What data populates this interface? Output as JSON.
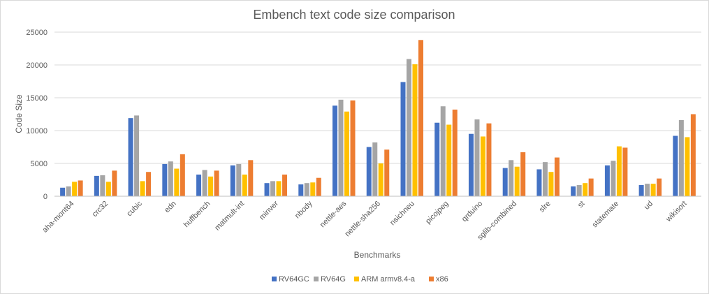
{
  "chart_data": {
    "type": "bar",
    "title": "Embench text code size comparison",
    "xlabel": "Benchmarks",
    "ylabel": "Code Size",
    "ylim": [
      0,
      25000
    ],
    "yticks": [
      0,
      5000,
      10000,
      15000,
      20000,
      25000
    ],
    "grid": true,
    "legend_position": "bottom",
    "categories": [
      "aha-mont64",
      "crc32",
      "cubic",
      "edn",
      "huffbench",
      "matmult-int",
      "minver",
      "nbody",
      "nettle-aes",
      "nettle-sha256",
      "nsichneu",
      "picojpeg",
      "qrduino",
      "sglib-combined",
      "slre",
      "st",
      "statemate",
      "ud",
      "wikisort"
    ],
    "series": [
      {
        "name": "RV64GC",
        "color": "#4472c4",
        "values": [
          1300,
          3100,
          11900,
          4900,
          3300,
          4700,
          2000,
          1800,
          13800,
          7500,
          17400,
          11200,
          9500,
          4300,
          4100,
          1500,
          4700,
          1700,
          9200
        ]
      },
      {
        "name": "RV64G",
        "color": "#a5a5a5",
        "values": [
          1500,
          3200,
          12300,
          5300,
          4000,
          4900,
          2300,
          2000,
          14700,
          8200,
          20900,
          13700,
          11700,
          5500,
          5200,
          1700,
          5400,
          1900,
          11600
        ]
      },
      {
        "name": "ARM armv8.4-a",
        "color": "#ffc000",
        "values": [
          2200,
          2200,
          2300,
          4200,
          3000,
          3300,
          2300,
          2100,
          12900,
          5000,
          20100,
          10900,
          9100,
          4500,
          3700,
          2000,
          7600,
          1900,
          9000
        ]
      },
      {
        "name": "x86",
        "color": "#ed7d31",
        "values": [
          2400,
          3900,
          3700,
          6400,
          3900,
          5500,
          3300,
          2800,
          14600,
          7100,
          23800,
          13200,
          11100,
          6700,
          5900,
          2700,
          7400,
          2700,
          12500
        ]
      }
    ]
  }
}
